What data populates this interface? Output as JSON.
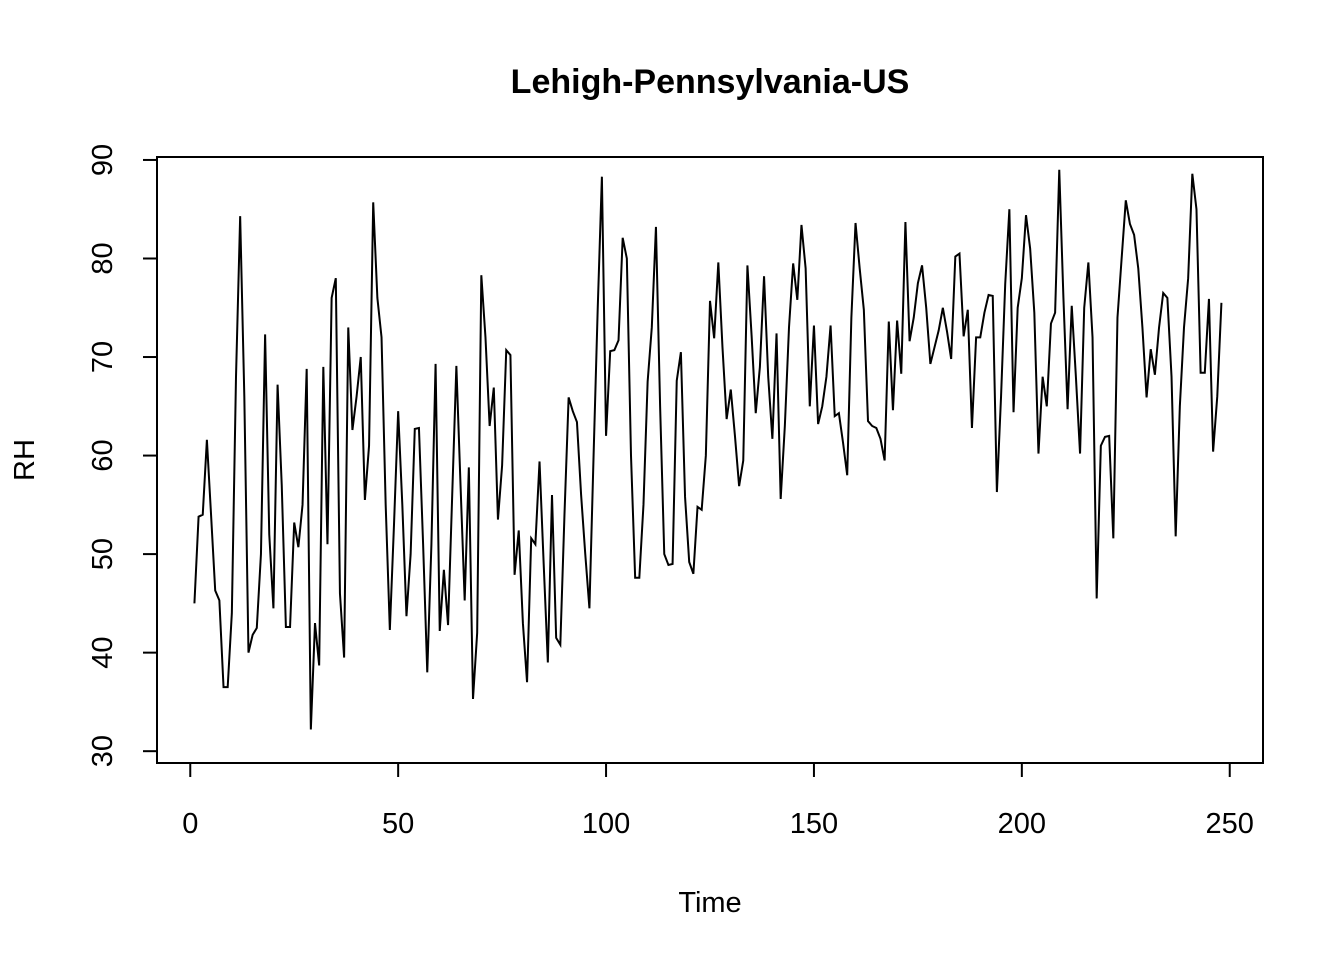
{
  "chart_data": {
    "type": "line",
    "title": "Lehigh-Pennsylvania-US",
    "xlabel": "Time",
    "ylabel": "RH",
    "xlim": [
      -8,
      258
    ],
    "ylim": [
      28.8,
      90.3
    ],
    "x_ticks": [
      0,
      50,
      100,
      150,
      200,
      250
    ],
    "y_ticks": [
      30,
      40,
      50,
      60,
      70,
      80,
      90
    ],
    "x_tick_labels": [
      "0",
      "50",
      "100",
      "150",
      "200",
      "250"
    ],
    "y_tick_labels": [
      "30",
      "40",
      "50",
      "60",
      "70",
      "80",
      "90"
    ],
    "grid": false,
    "series": [
      {
        "color": "#000000",
        "values": [
          45.0,
          53.8,
          54.0,
          61.6,
          54.0,
          46.3,
          45.3,
          36.5,
          36.5,
          44.0,
          68.0,
          84.3,
          66.0,
          40.0,
          41.8,
          42.5,
          50.0,
          72.3,
          52.0,
          44.5,
          67.2,
          57.0,
          42.6,
          42.6,
          53.2,
          50.7,
          55.0,
          68.8,
          32.2,
          43.0,
          38.7,
          69.0,
          51.0,
          76.0,
          78.0,
          46.0,
          39.5,
          73.0,
          62.6,
          66.0,
          70.0,
          55.5,
          61.0,
          85.7,
          76.0,
          72.0,
          55.0,
          42.3,
          53.0,
          64.5,
          55.0,
          43.7,
          50.0,
          62.7,
          62.8,
          51.0,
          38.0,
          51.0,
          69.3,
          42.2,
          48.4,
          42.8,
          56.0,
          69.1,
          57.0,
          45.3,
          58.8,
          35.3,
          42.0,
          78.3,
          72.0,
          63.0,
          66.9,
          53.5,
          59.0,
          70.7,
          70.2,
          47.9,
          52.4,
          43.0,
          37.0,
          51.6,
          51.0,
          59.4,
          49.0,
          39.0,
          56.0,
          41.5,
          40.8,
          54.0,
          65.9,
          64.5,
          63.4,
          56.0,
          50.0,
          44.5,
          60.0,
          75.0,
          88.3,
          62.0,
          70.6,
          70.7,
          71.7,
          82.1,
          80.0,
          60.0,
          47.6,
          47.6,
          55.0,
          67.5,
          73.0,
          83.2,
          65.0,
          50.0,
          48.9,
          49.0,
          67.6,
          70.5,
          55.8,
          49.2,
          48.0,
          54.8,
          54.5,
          60.0,
          75.7,
          71.9,
          79.6,
          71.0,
          63.7,
          66.7,
          62.0,
          56.9,
          59.5,
          79.3,
          72.2,
          64.3,
          69.0,
          78.2,
          68.0,
          61.7,
          72.4,
          55.6,
          63.0,
          73.0,
          79.5,
          75.8,
          83.4,
          79.0,
          65.0,
          73.2,
          63.2,
          65.0,
          68.0,
          73.2,
          64.0,
          64.3,
          61.3,
          58.0,
          74.0,
          83.6,
          79.0,
          74.8,
          63.5,
          63.0,
          62.8,
          61.7,
          59.5,
          73.6,
          64.6,
          73.7,
          68.3,
          83.7,
          71.6,
          74.0,
          77.5,
          79.3,
          75.0,
          69.3,
          71.0,
          72.7,
          75.0,
          72.6,
          69.8,
          80.2,
          80.5,
          72.1,
          74.8,
          62.8,
          72.0,
          72.0,
          74.5,
          76.3,
          76.2,
          56.3,
          66.0,
          77.4,
          85.0,
          64.4,
          75.0,
          78.0,
          84.4,
          81.0,
          74.5,
          60.2,
          68.0,
          65.0,
          73.4,
          74.5,
          89.0,
          76.0,
          64.7,
          75.2,
          68.0,
          60.2,
          75.0,
          79.6,
          72.0,
          45.5,
          61.0,
          61.9,
          62.0,
          51.6,
          74.0,
          80.0,
          85.9,
          83.5,
          82.4,
          79.0,
          73.0,
          65.9,
          70.8,
          68.2,
          73.0,
          76.5,
          76.0,
          68.0,
          51.8,
          65.0,
          73.0,
          78.0,
          88.6,
          85.0,
          68.4,
          68.4,
          75.9,
          60.4,
          66.0,
          75.5
        ]
      }
    ]
  }
}
